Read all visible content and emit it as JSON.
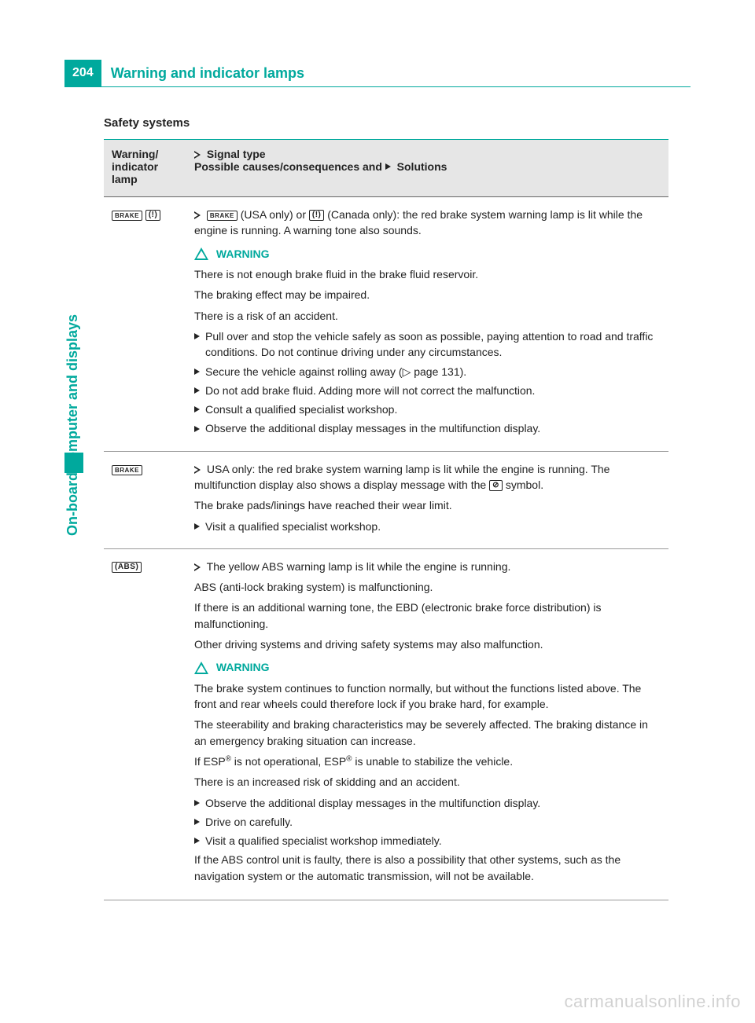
{
  "page_number": "204",
  "header_title": "Warning and indicator lamps",
  "side_label": "On-board computer and displays",
  "section_heading": "Safety systems",
  "table": {
    "head": {
      "col1": "Warning/\nindicator\nlamp",
      "col2_signal": "Signal type",
      "col2_causes": "Possible causes/consequences and ",
      "col2_solutions": "Solutions"
    },
    "rows": [
      {
        "lamp": {
          "icons": [
            "BRAKE",
            "(!)"
          ]
        },
        "signal_pre": "",
        "signal_usa_icon": "BRAKE",
        "signal_mid1": " (USA only) or ",
        "signal_can_icon": "(!)",
        "signal_mid2": " (Canada only): the red brake system warning lamp is lit while the engine is running. A warning tone also sounds.",
        "warning_label": "WARNING",
        "paras": [
          "There is not enough brake fluid in the brake fluid reservoir.",
          "The braking effect may be impaired.",
          "There is a risk of an accident."
        ],
        "bullets": [
          "Pull over and stop the vehicle safely as soon as possible, paying attention to road and traffic conditions. Do not continue driving under any circumstances.",
          "Secure the vehicle against rolling away (▷ page 131).",
          "Do not add brake fluid. Adding more will not correct the malfunction.",
          "Consult a qualified specialist workshop.",
          "Observe the additional display messages in the multifunction display."
        ]
      },
      {
        "lamp": {
          "icons": [
            "BRAKE"
          ]
        },
        "signal": "USA only: the red brake system warning lamp is lit while the engine is running. The multifunction display also shows a display message with the ",
        "signal_icon": "⊘",
        "signal_after": " symbol.",
        "paras": [
          "The brake pads/linings have reached their wear limit."
        ],
        "bullets": [
          "Visit a qualified specialist workshop."
        ]
      },
      {
        "lamp": {
          "icons": [
            "(ABS)"
          ]
        },
        "signal": "The yellow ABS warning lamp is lit while the engine is running.",
        "paras1": [
          "ABS (anti-lock braking system) is malfunctioning.",
          "If there is an additional warning tone, the EBD (electronic brake force distribution) is malfunctioning.",
          "Other driving systems and driving safety systems may also malfunction."
        ],
        "warning_label": "WARNING",
        "paras2": [
          "The brake system continues to function normally, but without the functions listed above. The front and rear wheels could therefore lock if you brake hard, for example.",
          "The steerability and braking characteristics may be severely affected. The braking distance in an emergency braking situation can increase."
        ],
        "esp_line_pre": "If ESP",
        "esp_line_mid": " is not operational, ESP",
        "esp_line_post": " is unable to stabilize the vehicle.",
        "paras3": [
          "There is an increased risk of skidding and an accident."
        ],
        "bullets": [
          "Observe the additional display messages in the multifunction display.",
          "Drive on carefully.",
          "Visit a qualified specialist workshop immediately."
        ],
        "tail": "If the ABS control unit is faulty, there is also a possibility that other systems, such as the navigation system or the automatic transmission, will not be available."
      }
    ]
  },
  "watermark": "carmanualsonline.info",
  "colors": {
    "accent": "#00a99d",
    "text": "#222222",
    "head_bg": "#e6e6e6"
  }
}
